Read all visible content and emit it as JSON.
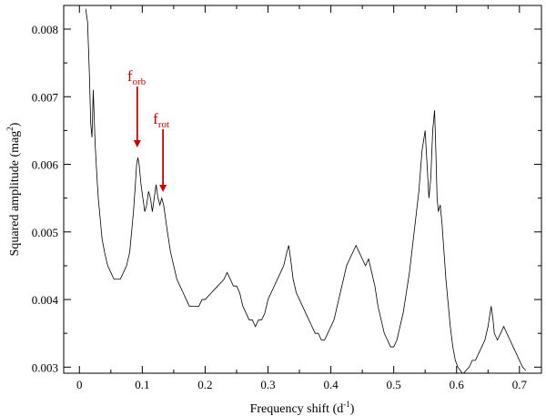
{
  "chart_data": {
    "type": "line",
    "title": "",
    "xlabel": "Frequency shift",
    "xlabel_unit_base": "d",
    "xlabel_unit_exp": "-1",
    "ylabel": "Squared amplitude",
    "ylabel_unit_base": "mag",
    "ylabel_unit_exp": "2",
    "xlim": [
      -0.025,
      0.735
    ],
    "ylim": [
      0.00291,
      0.00835
    ],
    "xticks": [
      "0",
      "0.1",
      "0.2",
      "0.3",
      "0.4",
      "0.5",
      "0.6",
      "0.7"
    ],
    "yticks": [
      "0.003",
      "0.004",
      "0.005",
      "0.006",
      "0.007",
      "0.008"
    ],
    "grid": false,
    "series": [
      {
        "color": "#000000",
        "x": [
          0.01,
          0.013,
          0.016,
          0.018,
          0.02,
          0.022,
          0.025,
          0.028,
          0.03,
          0.033,
          0.036,
          0.04,
          0.045,
          0.05,
          0.055,
          0.06,
          0.065,
          0.07,
          0.075,
          0.08,
          0.083,
          0.086,
          0.089,
          0.091,
          0.093,
          0.095,
          0.098,
          0.101,
          0.104,
          0.107,
          0.11,
          0.113,
          0.116,
          0.119,
          0.122,
          0.125,
          0.128,
          0.131,
          0.134,
          0.137,
          0.14,
          0.145,
          0.15,
          0.155,
          0.16,
          0.165,
          0.17,
          0.175,
          0.18,
          0.185,
          0.19,
          0.195,
          0.2,
          0.21,
          0.22,
          0.23,
          0.235,
          0.24,
          0.245,
          0.25,
          0.255,
          0.26,
          0.265,
          0.27,
          0.275,
          0.28,
          0.285,
          0.29,
          0.295,
          0.3,
          0.305,
          0.31,
          0.315,
          0.32,
          0.325,
          0.33,
          0.333,
          0.336,
          0.34,
          0.345,
          0.35,
          0.355,
          0.36,
          0.365,
          0.37,
          0.375,
          0.38,
          0.385,
          0.39,
          0.395,
          0.4,
          0.405,
          0.41,
          0.415,
          0.42,
          0.425,
          0.43,
          0.435,
          0.44,
          0.445,
          0.45,
          0.455,
          0.46,
          0.465,
          0.47,
          0.475,
          0.48,
          0.485,
          0.49,
          0.495,
          0.5,
          0.505,
          0.51,
          0.515,
          0.52,
          0.525,
          0.53,
          0.535,
          0.54,
          0.545,
          0.55,
          0.553,
          0.556,
          0.559,
          0.562,
          0.565,
          0.567,
          0.569,
          0.571,
          0.574,
          0.577,
          0.58,
          0.583,
          0.586,
          0.59,
          0.594,
          0.598,
          0.602,
          0.606,
          0.61,
          0.615,
          0.62,
          0.625,
          0.63,
          0.635,
          0.64,
          0.645,
          0.65,
          0.655,
          0.658,
          0.66,
          0.665,
          0.67,
          0.675,
          0.68,
          0.685,
          0.69,
          0.695,
          0.7,
          0.705,
          0.71
        ],
        "y": [
          0.0083,
          0.0081,
          0.0073,
          0.0066,
          0.0064,
          0.0071,
          0.0063,
          0.0058,
          0.0055,
          0.0052,
          0.0049,
          0.0047,
          0.0045,
          0.0044,
          0.0043,
          0.0043,
          0.0043,
          0.0044,
          0.0045,
          0.0047,
          0.005,
          0.0053,
          0.0057,
          0.006,
          0.0061,
          0.006,
          0.0057,
          0.0055,
          0.0053,
          0.0054,
          0.0056,
          0.0055,
          0.0053,
          0.0055,
          0.0057,
          0.0055,
          0.0054,
          0.0055,
          0.0054,
          0.0052,
          0.005,
          0.0047,
          0.0045,
          0.0043,
          0.0042,
          0.0041,
          0.004,
          0.0039,
          0.0039,
          0.0039,
          0.0039,
          0.004,
          0.004,
          0.0041,
          0.0042,
          0.0043,
          0.0044,
          0.0043,
          0.0042,
          0.0042,
          0.0041,
          0.0039,
          0.0038,
          0.0037,
          0.0037,
          0.0036,
          0.0037,
          0.0037,
          0.0038,
          0.004,
          0.0041,
          0.0042,
          0.0043,
          0.0044,
          0.0045,
          0.0047,
          0.0048,
          0.0046,
          0.0043,
          0.0041,
          0.004,
          0.0039,
          0.0038,
          0.0037,
          0.0036,
          0.0035,
          0.0035,
          0.0034,
          0.0034,
          0.0035,
          0.0036,
          0.0037,
          0.0039,
          0.0041,
          0.0043,
          0.0045,
          0.0046,
          0.0047,
          0.0048,
          0.0047,
          0.0046,
          0.0045,
          0.0046,
          0.0044,
          0.0042,
          0.0039,
          0.0037,
          0.0035,
          0.0034,
          0.0033,
          0.0033,
          0.0034,
          0.0036,
          0.0038,
          0.0041,
          0.0044,
          0.0048,
          0.0052,
          0.0056,
          0.0062,
          0.0065,
          0.006,
          0.0055,
          0.0058,
          0.0065,
          0.0068,
          0.0062,
          0.0055,
          0.0053,
          0.0054,
          0.0051,
          0.0047,
          0.0043,
          0.004,
          0.0036,
          0.0033,
          0.0031,
          0.003,
          0.00295,
          0.0029,
          0.00295,
          0.003,
          0.0031,
          0.0031,
          0.0032,
          0.0033,
          0.0034,
          0.0036,
          0.0039,
          0.0037,
          0.0035,
          0.0034,
          0.0035,
          0.0036,
          0.0035,
          0.0034,
          0.0033,
          0.0032,
          0.0031,
          0.003,
          0.00295
        ]
      }
    ],
    "annotations": [
      {
        "label_base": "f",
        "label_sub": "orb",
        "color": "#cc0000",
        "arrow_x": 0.092,
        "arrow_from_y": 0.00715,
        "arrow_to_y": 0.00625
      },
      {
        "label_base": "f",
        "label_sub": "rot",
        "color": "#cc0000",
        "arrow_x": 0.133,
        "arrow_from_y": 0.00652,
        "arrow_to_y": 0.00559
      }
    ]
  }
}
